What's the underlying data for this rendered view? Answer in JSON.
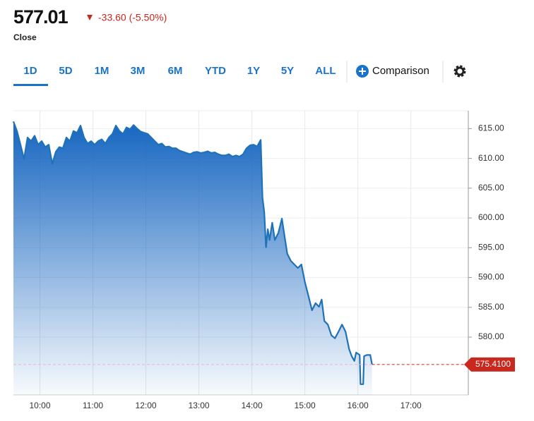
{
  "header": {
    "price": "577.01",
    "change": "-33.60 (-5.50%)",
    "session": "Close"
  },
  "range_tabs": [
    "1D",
    "5D",
    "1M",
    "3M",
    "6M",
    "YTD",
    "1Y",
    "5Y",
    "ALL"
  ],
  "comparison": "Comparison",
  "chart_data": {
    "type": "line",
    "color": "#1f72b8",
    "grid": true,
    "x": [
      570,
      574,
      578,
      582,
      586,
      590,
      594,
      598,
      602,
      606,
      610,
      614,
      618,
      622,
      626,
      630,
      634,
      638,
      642,
      646,
      650,
      654,
      658,
      662,
      666,
      670,
      674,
      678,
      682,
      686,
      690,
      694,
      698,
      702,
      706,
      710,
      714,
      718,
      722,
      726,
      730,
      734,
      738,
      742,
      746,
      750,
      754,
      758,
      762,
      766,
      770,
      774,
      778,
      782,
      786,
      790,
      794,
      798,
      802,
      806,
      810,
      814,
      818,
      822,
      826,
      830,
      834,
      838,
      842,
      846,
      850,
      852,
      854,
      856,
      858,
      860,
      863,
      866,
      870,
      874,
      877,
      880,
      884,
      888,
      892,
      896,
      900,
      904,
      908,
      912,
      916,
      919,
      922,
      926,
      930,
      934,
      938,
      942,
      946,
      950,
      953,
      956,
      958,
      962,
      963,
      966,
      967,
      970,
      974,
      976
    ],
    "values": [
      616.2,
      614.6,
      612.3,
      609.9,
      613.5,
      612.9,
      613.8,
      612.3,
      612.9,
      611.9,
      612.3,
      609.1,
      611.1,
      611.9,
      611.7,
      613.5,
      612.9,
      614.6,
      614.3,
      615.5,
      613.5,
      612.5,
      612.9,
      612.3,
      612.9,
      613.2,
      612.5,
      613.5,
      614.1,
      615.5,
      614.6,
      614.1,
      615.2,
      614.9,
      615.6,
      615.0,
      614.5,
      614.3,
      614.1,
      613.5,
      612.9,
      612.3,
      612.5,
      611.9,
      612.0,
      611.7,
      611.7,
      611.3,
      611.1,
      610.9,
      610.7,
      611.0,
      611.1,
      610.9,
      611.0,
      611.2,
      610.9,
      611.0,
      610.7,
      610.5,
      610.5,
      610.7,
      610.3,
      610.5,
      610.3,
      610.7,
      611.7,
      612.2,
      612.3,
      612.0,
      613.1,
      603.4,
      601.0,
      595.1,
      598.1,
      596.3,
      599.2,
      596.3,
      597.5,
      599.9,
      596.9,
      594.0,
      592.8,
      592.2,
      591.6,
      592.2,
      589.2,
      586.9,
      584.5,
      585.7,
      585.1,
      586.3,
      582.7,
      582.1,
      580.3,
      579.8,
      580.9,
      582.1,
      580.9,
      578.0,
      576.8,
      576.0,
      577.4,
      577.0,
      572.1,
      572.1,
      576.8,
      577.0,
      577.0,
      575.41
    ],
    "xlim": [
      570,
      1085
    ],
    "xticks": [
      {
        "value": 600,
        "label": "10:00"
      },
      {
        "value": 660,
        "label": "11:00"
      },
      {
        "value": 720,
        "label": "12:00"
      },
      {
        "value": 780,
        "label": "13:00"
      },
      {
        "value": 840,
        "label": "14:00"
      },
      {
        "value": 900,
        "label": "15:00"
      },
      {
        "value": 960,
        "label": "16:00"
      },
      {
        "value": 1020,
        "label": "17:00"
      }
    ],
    "ylim": [
      570.3,
      618
    ],
    "yticks": [
      {
        "value": 580,
        "label": "580.00"
      },
      {
        "value": 585,
        "label": "585.00"
      },
      {
        "value": 590,
        "label": "590.00"
      },
      {
        "value": 595,
        "label": "595.00"
      },
      {
        "value": 600,
        "label": "600.00"
      },
      {
        "value": 605,
        "label": "605.00"
      },
      {
        "value": 610,
        "label": "610.00"
      },
      {
        "value": 615,
        "label": "615.00"
      }
    ],
    "last_price": 575.41,
    "last_price_label": "575.4100",
    "last_price_color": "#c8281e"
  }
}
